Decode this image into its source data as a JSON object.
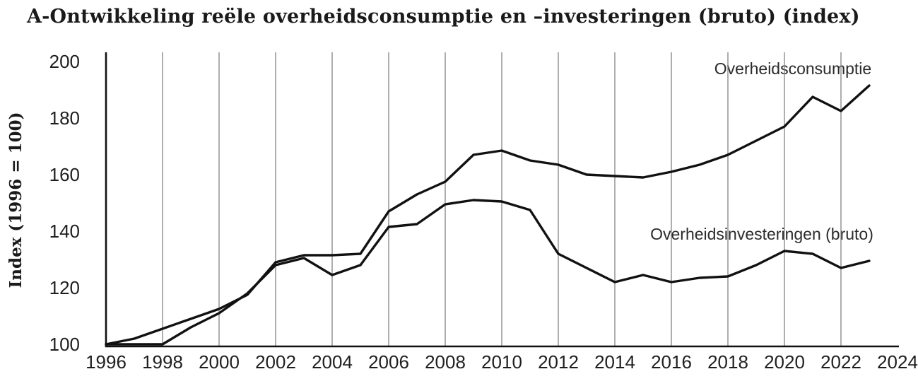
{
  "title": "A-Ontwikkeling reële overheidsconsumptie en –investeringen (bruto) (index)",
  "colors": {
    "line": "#111111",
    "axis": "#111111",
    "grid": "#828282",
    "text": "#1f1f1f"
  },
  "chart_data": {
    "type": "line",
    "title": "A-Ontwikkeling reële overheidsconsumptie en –investeringen (bruto) (index)",
    "xlabel": "",
    "ylabel": "Index (1996 = 100)",
    "x": [
      1996,
      1997,
      1998,
      1999,
      2000,
      2001,
      2002,
      2003,
      2004,
      2005,
      2006,
      2007,
      2008,
      2009,
      2010,
      2011,
      2012,
      2013,
      2014,
      2015,
      2016,
      2017,
      2018,
      2019,
      2020,
      2021,
      2022,
      2023
    ],
    "series": [
      {
        "name": "Overheidsconsumptie",
        "values": [
          100,
          102,
          105.5,
          109,
          112.5,
          117.5,
          129,
          131.5,
          131.5,
          132,
          147,
          153,
          157.5,
          167,
          168.5,
          165,
          163.5,
          160,
          159.5,
          159,
          161,
          163.5,
          167,
          172,
          177,
          187.5,
          182.5,
          191.5
        ]
      },
      {
        "name": "Overheidsinvesteringen (bruto)",
        "values": [
          100,
          100,
          100,
          106,
          111,
          118,
          128,
          130.5,
          124.5,
          128,
          141.5,
          142.5,
          149.5,
          151,
          150.5,
          147.5,
          132,
          127,
          122,
          124.5,
          122,
          123.5,
          124,
          128,
          133,
          132,
          127,
          129.5
        ]
      }
    ],
    "yticks": [
      100,
      120,
      140,
      160,
      180,
      200
    ],
    "xticks": [
      1996,
      1998,
      2000,
      2002,
      2004,
      2006,
      2008,
      2010,
      2012,
      2014,
      2016,
      2018,
      2020,
      2022,
      2024
    ],
    "ylim": [
      100,
      200
    ],
    "xlim": [
      1996,
      2024
    ],
    "grid": "vertical-only",
    "legend_position": "inline-annotations",
    "annotations": [
      {
        "text": "Overheidsconsumptie",
        "x": 2020.3,
        "y": 197.5
      },
      {
        "text": "Overheidsinvesteringen (bruto)",
        "x": 2019.2,
        "y": 139
      }
    ]
  }
}
